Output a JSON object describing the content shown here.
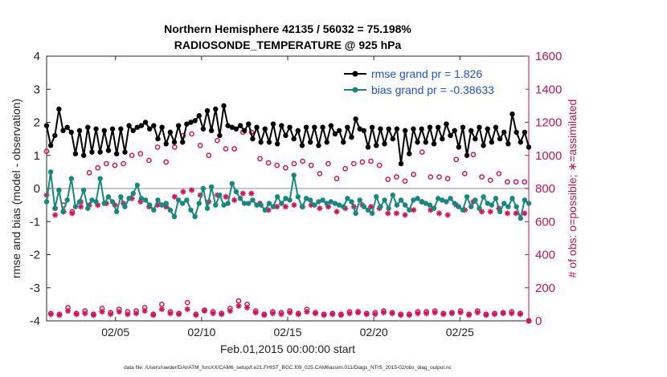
{
  "chart_data": {
    "type": "line",
    "title_line1": "Northern Hemisphere 42135 / 56032 = 75.198%",
    "title_line2": "RADIOSONDE_TEMPERATURE @ 925 hPa",
    "xlabel": "Feb.01,2015 00:00:00 start",
    "ylabel_left": "rmse and bias (model - observation)",
    "ylabel_right": "# of obs: o=possible; ∗=assimilated",
    "footnote": "data file: /Users/raeder/DAI/ATM_forcXX/CAM6_setup/f.e21.FHIST_BGC.f09_025.CAM6assim.011/Diags_NTrS_2015-02/obs_diag_output.nc",
    "x_range_days": [
      1,
      29
    ],
    "x_ticks": [
      {
        "day": 5,
        "label": "02/05"
      },
      {
        "day": 10,
        "label": "02/10"
      },
      {
        "day": 15,
        "label": "02/15"
      },
      {
        "day": 20,
        "label": "02/20"
      },
      {
        "day": 25,
        "label": "02/25"
      }
    ],
    "ylim_left": [
      -4,
      4
    ],
    "yticks_left": [
      -4,
      -3,
      -2,
      -1,
      0,
      1,
      2,
      3,
      4
    ],
    "ylim_right": [
      0,
      1600
    ],
    "yticks_right": [
      0,
      200,
      400,
      600,
      800,
      1000,
      1200,
      1400,
      1600
    ],
    "legend_position": "top-right",
    "colors": {
      "rmse": "#000000",
      "bias": "#17887f",
      "obs": "#d0145a",
      "zero_line": "#b4b4b4",
      "legend_text": "#1f4fe0",
      "right_axis": "#c8144e"
    },
    "series": [
      {
        "name": "rmse grand pr = 1.826",
        "axis": "left",
        "values": [
          1.9,
          1.3,
          1.6,
          2.4,
          1.75,
          1.85,
          1.7,
          1.05,
          1.75,
          1.0,
          1.85,
          1.1,
          1.8,
          1.1,
          1.75,
          1.15,
          1.8,
          1.05,
          1.8,
          1.1,
          1.9,
          1.75,
          1.85,
          1.9,
          2.0,
          1.8,
          1.9,
          1.5,
          1.85,
          1.35,
          1.7,
          1.4,
          1.9,
          1.4,
          1.95,
          2.0,
          2.05,
          2.2,
          1.8,
          2.35,
          1.75,
          2.4,
          1.6,
          2.5,
          1.9,
          1.85,
          1.8,
          1.9,
          1.75,
          1.95,
          1.5,
          1.85,
          1.4,
          1.8,
          1.4,
          1.95,
          1.35,
          1.9,
          1.6,
          1.85,
          1.5,
          1.75,
          1.3,
          1.85,
          1.4,
          1.85,
          1.3,
          1.85,
          1.4,
          1.9,
          1.65,
          1.75,
          1.4,
          1.85,
          1.55,
          2.1,
          1.8,
          1.75,
          1.25,
          1.85,
          1.3,
          1.8,
          1.35,
          1.8,
          1.5,
          1.8,
          0.75,
          1.75,
          1.05,
          1.8,
          1.4,
          1.8,
          1.4,
          1.85,
          1.35,
          1.85,
          1.5,
          1.95,
          1.6,
          1.75,
          1.25,
          1.85,
          1.0,
          1.75,
          1.5,
          1.85,
          1.3,
          1.8,
          1.4,
          1.85,
          1.5,
          1.7,
          1.35,
          2.25,
          1.7,
          1.4,
          1.7,
          1.25
        ]
      },
      {
        "name": "bias grand pr = -0.38633",
        "axis": "left",
        "values": [
          -0.4,
          0.5,
          -0.6,
          -0.05,
          -0.7,
          -0.35,
          0.3,
          -0.55,
          -0.4,
          -0.05,
          -0.6,
          -0.35,
          -0.4,
          0.3,
          -0.45,
          -0.25,
          -0.4,
          -0.7,
          -0.25,
          -0.55,
          -0.3,
          -0.15,
          0.1,
          -0.3,
          -0.35,
          -0.5,
          -0.65,
          -0.35,
          -0.5,
          -0.45,
          -0.65,
          -0.85,
          -0.35,
          -0.45,
          -0.35,
          -0.65,
          -0.85,
          -0.45,
          0.0,
          -0.6,
          0.05,
          -0.5,
          -0.2,
          -0.5,
          -0.45,
          0.15,
          -0.1,
          -0.3,
          -0.45,
          -0.45,
          -0.35,
          -0.5,
          -0.5,
          -0.65,
          -0.45,
          -0.55,
          -0.25,
          -0.45,
          -0.3,
          -0.35,
          0.4,
          -0.25,
          -0.55,
          -0.3,
          -0.35,
          -0.5,
          -0.4,
          -0.35,
          -0.45,
          -0.4,
          -0.45,
          -0.5,
          -0.55,
          -0.3,
          -0.4,
          -0.75,
          -0.35,
          -0.55,
          -0.65,
          -0.75,
          -0.25,
          -0.55,
          -0.35,
          -0.6,
          -0.2,
          -0.5,
          -0.35,
          -0.5,
          -0.65,
          -0.35,
          -0.3,
          -0.4,
          -0.45,
          -0.5,
          -0.6,
          -0.3,
          -0.35,
          -0.4,
          -0.3,
          -0.45,
          -0.55,
          -0.65,
          -0.25,
          -0.55,
          -0.35,
          -0.6,
          -0.25,
          -0.45,
          -0.5,
          -0.3,
          -0.7,
          -0.45,
          -0.55,
          -0.3,
          -0.55,
          -0.9,
          -0.35,
          -0.45
        ]
      },
      {
        "name": "possible",
        "axis": "right",
        "values": [
          1025,
          45,
          680,
          40,
          700,
          80,
          660,
          45,
          720,
          60,
          895,
          40,
          925,
          75,
          950,
          50,
          940,
          70,
          950,
          55,
          1000,
          60,
          1010,
          80,
          970,
          40,
          1050,
          100,
          960,
          55,
          1050,
          45,
          1120,
          110,
          1130,
          40,
          1060,
          65,
          1000,
          55,
          1090,
          45,
          1040,
          75,
          1040,
          120,
          1140,
          100,
          1140,
          60,
          980,
          40,
          955,
          55,
          940,
          50,
          925,
          60,
          950,
          45,
          965,
          70,
          940,
          50,
          890,
          40,
          950,
          45,
          860,
          40,
          920,
          55,
          950,
          55,
          960,
          45,
          965,
          50,
          940,
          60,
          855,
          50,
          870,
          40,
          845,
          40,
          885,
          55,
          1020,
          55,
          870,
          60,
          870,
          45,
          860,
          50,
          975,
          60,
          890,
          40,
          1005,
          60,
          870,
          40,
          850,
          45,
          890,
          50,
          840,
          55,
          840,
          45,
          840,
          0
        ]
      },
      {
        "name": "assimilated",
        "axis": "right",
        "values": [
          760,
          40,
          640,
          35,
          660,
          60,
          650,
          40,
          690,
          45,
          700,
          35,
          700,
          55,
          710,
          40,
          700,
          55,
          710,
          40,
          740,
          45,
          720,
          60,
          690,
          35,
          700,
          70,
          690,
          45,
          750,
          40,
          780,
          70,
          790,
          35,
          760,
          60,
          720,
          45,
          760,
          40,
          750,
          60,
          730,
          90,
          770,
          80,
          770,
          50,
          710,
          35,
          670,
          45,
          690,
          40,
          690,
          50,
          700,
          40,
          690,
          55,
          700,
          45,
          680,
          35,
          690,
          40,
          660,
          35,
          680,
          45,
          690,
          50,
          700,
          40,
          690,
          40,
          680,
          50,
          650,
          45,
          650,
          35,
          640,
          35,
          670,
          45,
          720,
          45,
          670,
          50,
          650,
          40,
          640,
          45,
          700,
          50,
          670,
          35,
          720,
          50,
          660,
          35,
          660,
          40,
          680,
          45,
          650,
          45,
          650,
          40,
          650,
          0
        ]
      }
    ]
  }
}
